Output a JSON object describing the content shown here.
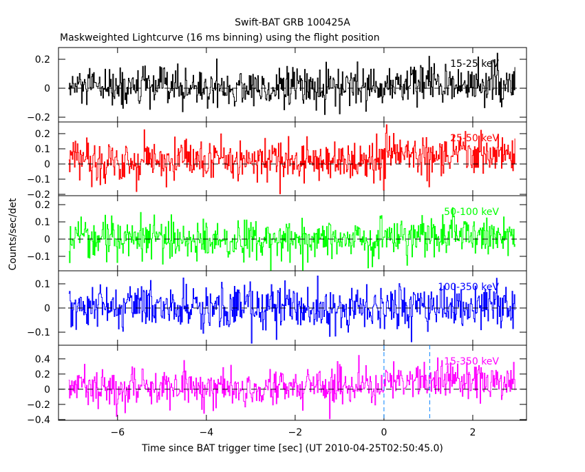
{
  "chart_data": {
    "type": "line",
    "title": "Swift-BAT GRB 100425A",
    "subtitle": "Maskweighted Lightcurve (16 ms binning) using the flight position",
    "xlabel": "Time since BAT trigger time [sec] (UT 2010-04-25T02:50:45.0)",
    "ylabel": "Counts/sec/det",
    "xlim": [
      -7.33,
      3.21
    ],
    "x_ticks": [
      "-6",
      "-4",
      "-2",
      "0",
      "2"
    ],
    "x_tick_values": [
      -6,
      -4,
      -2,
      0,
      2
    ],
    "bin_size_sec": 0.016,
    "data_x_range": [
      -7.1,
      2.95
    ],
    "markers": [
      0,
      1.03
    ],
    "series": [
      {
        "name": "15-25 keV",
        "color": "#000000",
        "ylim": [
          -0.233,
          0.281
        ],
        "y_ticks": [
          "-0.2",
          "0",
          "0.2"
        ],
        "y_tick_values": [
          -0.2,
          0,
          0.2
        ],
        "noise_sigma": 0.07,
        "mean_before_0": 0.0,
        "mean_after_0": 0.03
      },
      {
        "name": "25-50 keV",
        "color": "#ff0000",
        "ylim": [
          -0.209,
          0.277
        ],
        "y_ticks": [
          "-0.2",
          "-0.1",
          "0",
          "0.1",
          "0.2"
        ],
        "y_tick_values": [
          -0.2,
          -0.1,
          0,
          0.1,
          0.2
        ],
        "noise_sigma": 0.07,
        "mean_before_0": 0.02,
        "mean_after_0": 0.06
      },
      {
        "name": "50-100 keV",
        "color": "#00ff00",
        "ylim": [
          -0.184,
          0.252
        ],
        "y_ticks": [
          "-0.1",
          "0",
          "0.1",
          "0.2"
        ],
        "y_tick_values": [
          -0.1,
          0,
          0.1,
          0.2
        ],
        "noise_sigma": 0.06,
        "mean_before_0": 0.0,
        "mean_after_0": 0.02
      },
      {
        "name": "100-350 keV",
        "color": "#0000ff",
        "ylim": [
          -0.154,
          0.154
        ],
        "y_ticks": [
          "-0.1",
          "0",
          "0.1"
        ],
        "y_tick_values": [
          -0.1,
          0,
          0.1
        ],
        "noise_sigma": 0.05,
        "mean_before_0": 0.0,
        "mean_after_0": 0.01
      },
      {
        "name": "15-350 keV",
        "color": "#ff00ff",
        "ylim": [
          -0.41,
          0.58
        ],
        "y_ticks": [
          "-0.4",
          "-0.2",
          "0",
          "0.2",
          "0.4"
        ],
        "y_tick_values": [
          -0.4,
          -0.2,
          0,
          0.2,
          0.4
        ],
        "noise_sigma": 0.12,
        "mean_before_0": 0.03,
        "mean_after_0": 0.12
      }
    ]
  }
}
